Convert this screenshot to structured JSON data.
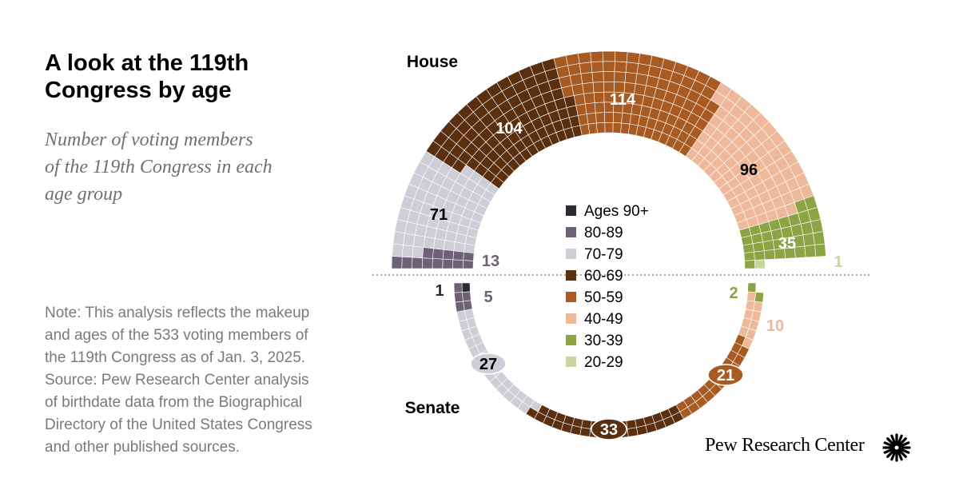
{
  "title_lines": [
    "A look at the 119th",
    "Congress by age"
  ],
  "subtitle_lines": [
    "Number of voting members",
    "of the 119th Congress in each",
    "age group"
  ],
  "note_lines": [
    "Note: This analysis reflects the makeup",
    "and ages of the 533 voting members of",
    "the 119th Congress as of Jan. 3, 2025.",
    "Source: Pew Research Center analysis",
    "of birthdate data from the Biographical",
    "Directory of the United States Congress",
    "and other published sources."
  ],
  "logo_text": "Pew Research Center",
  "logo_icon": "pew-sunburst-icon",
  "colors": {
    "90+": "#2e2a33",
    "80-89": "#6d6275",
    "70-79": "#cfcdd6",
    "60-69": "#5a2f10",
    "50-59": "#a85a23",
    "40-49": "#eeb99a",
    "30-39": "#8ca444",
    "20-29": "#c9d6a0"
  },
  "chart_data": {
    "type": "semicircle-waffle",
    "legend": [
      "Ages 90+",
      "80-89",
      "70-79",
      "60-69",
      "50-59",
      "40-49",
      "30-39",
      "20-29"
    ],
    "series_keys": [
      "90+",
      "80-89",
      "70-79",
      "60-69",
      "50-59",
      "40-49",
      "30-39",
      "20-29"
    ],
    "house": {
      "label": "House",
      "values": [
        0,
        13,
        71,
        104,
        114,
        96,
        35,
        1
      ],
      "labels": [
        "",
        "13",
        "71",
        "104",
        "114",
        "96",
        "35",
        "1"
      ]
    },
    "senate": {
      "label": "Senate",
      "values": [
        1,
        5,
        27,
        33,
        21,
        10,
        2,
        0
      ],
      "labels": [
        "1",
        "5",
        "27",
        "33",
        "21",
        "10",
        "2",
        ""
      ]
    }
  }
}
